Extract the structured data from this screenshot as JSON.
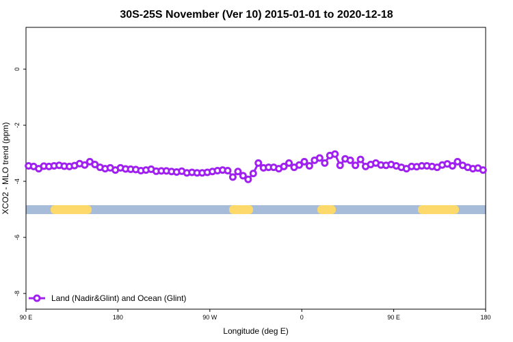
{
  "chart_data": {
    "type": "line",
    "title": "30S-25S November (Ver 10)   2015-01-01 to 2020-12-18",
    "x_label": "Longitude (deg E)",
    "y_label": "XCO2 - MLO trend (ppm)",
    "xlim": [
      90,
      540
    ],
    "xticks": [
      {
        "value": 90,
        "label": "90 E"
      },
      180,
      {
        "value": 270,
        "label": "90 W"
      },
      {
        "value": 360,
        "label": "0"
      },
      {
        "value": 450,
        "label": "90 E"
      },
      {
        "value": 540,
        "label": "180"
      }
    ],
    "ylim": [
      -8.56,
      1.49
    ],
    "yticks": [
      0,
      -2,
      -4,
      -6,
      -8
    ],
    "legend": "bottom-left",
    "x": [
      92.5,
      97.5,
      102.5,
      107.5,
      112.5,
      117.5,
      122.5,
      127.5,
      132.5,
      137.5,
      142.5,
      147.5,
      152.5,
      157.5,
      162.5,
      167.5,
      172.5,
      177.5,
      182.5,
      187.5,
      192.5,
      197.5,
      202.5,
      207.5,
      212.5,
      217.5,
      222.5,
      227.5,
      232.5,
      237.5,
      242.5,
      247.5,
      252.5,
      257.5,
      262.5,
      267.5,
      272.5,
      277.5,
      282.5,
      287.5,
      292.5,
      297.5,
      302.5,
      307.5,
      312.5,
      317.5,
      322.5,
      327.5,
      332.5,
      337.5,
      342.5,
      347.5,
      352.5,
      357.5,
      362.5,
      367.5,
      372.5,
      377.5,
      382.5,
      387.5,
      392.5,
      397.5,
      402.5,
      407.5,
      412.5,
      417.5,
      422.5,
      427.5,
      432.5,
      437.5,
      442.5,
      447.5,
      452.5,
      457.5,
      462.5,
      467.5,
      472.5,
      477.5,
      482.5,
      487.5,
      492.5,
      497.5,
      502.5,
      507.5,
      512.5,
      517.5,
      522.5,
      527.5,
      532.5,
      537.5
    ],
    "series": [
      {
        "name": "Land (Nadir&Glint) and Ocean (Glint)",
        "color": "#a020f0",
        "values": [
          -3.45,
          -3.47,
          -3.55,
          -3.46,
          -3.47,
          -3.45,
          -3.43,
          -3.46,
          -3.47,
          -3.44,
          -3.37,
          -3.42,
          -3.3,
          -3.4,
          -3.5,
          -3.55,
          -3.52,
          -3.6,
          -3.52,
          -3.56,
          -3.57,
          -3.58,
          -3.62,
          -3.6,
          -3.57,
          -3.64,
          -3.63,
          -3.63,
          -3.65,
          -3.67,
          -3.64,
          -3.7,
          -3.68,
          -3.7,
          -3.7,
          -3.68,
          -3.65,
          -3.62,
          -3.6,
          -3.62,
          -3.85,
          -3.65,
          -3.8,
          -3.93,
          -3.72,
          -3.35,
          -3.52,
          -3.5,
          -3.5,
          -3.55,
          -3.47,
          -3.35,
          -3.5,
          -3.42,
          -3.3,
          -3.45,
          -3.25,
          -3.17,
          -3.35,
          -3.08,
          -3.03,
          -3.43,
          -3.2,
          -3.25,
          -3.43,
          -3.22,
          -3.47,
          -3.4,
          -3.35,
          -3.42,
          -3.43,
          -3.4,
          -3.45,
          -3.5,
          -3.55,
          -3.47,
          -3.48,
          -3.45,
          -3.45,
          -3.47,
          -3.5,
          -3.42,
          -3.38,
          -3.45,
          -3.3,
          -3.43,
          -3.5,
          -3.55,
          -3.53,
          -3.6
        ]
      }
    ]
  }
}
